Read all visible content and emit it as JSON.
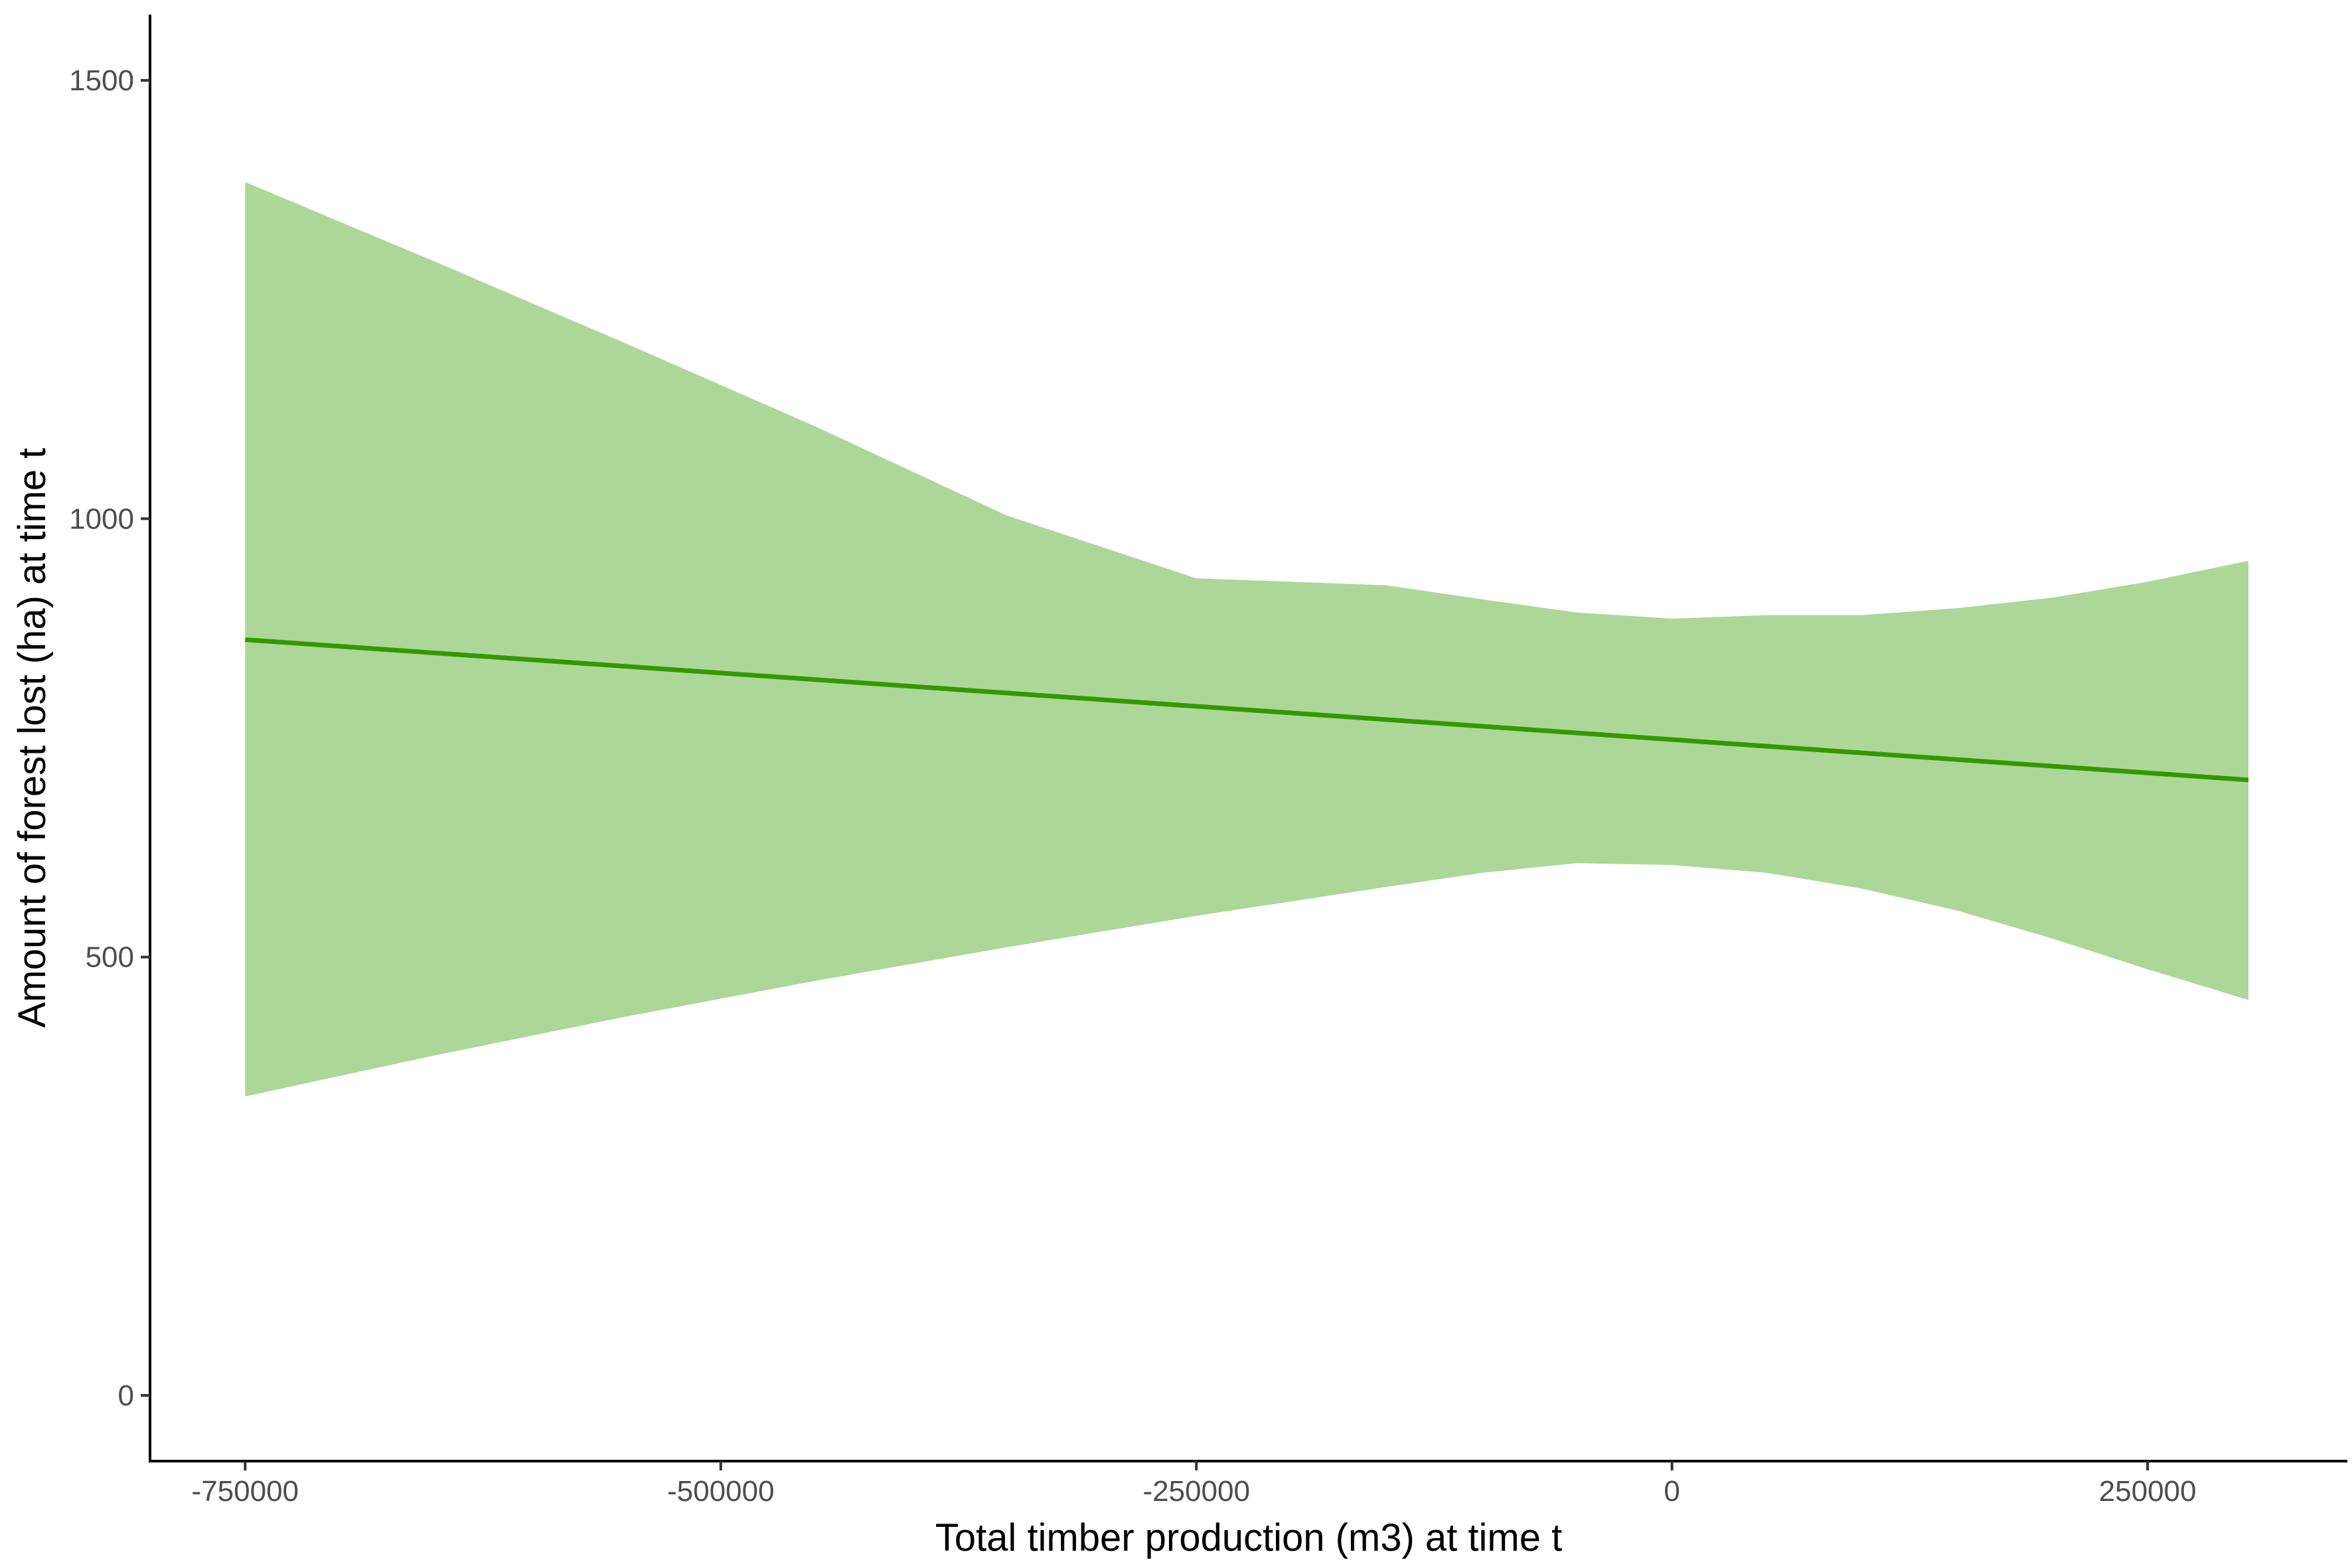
{
  "chart_data": {
    "type": "line",
    "title": "",
    "xlabel": "Total timber production (m3) at time t",
    "ylabel": "Amount of forest lost (ha) at time t",
    "xlim": [
      -800000,
      355000
    ],
    "ylim": [
      -75,
      1575
    ],
    "x_ticks": [
      -750000,
      -500000,
      -250000,
      0,
      250000
    ],
    "x_tick_labels": [
      "-750000",
      "-500000",
      "-250000",
      "0",
      "250000"
    ],
    "y_ticks": [
      0,
      500,
      1000,
      1500
    ],
    "y_tick_labels": [
      "0",
      "500",
      "1000",
      "1500"
    ],
    "grid": false,
    "legend": "none",
    "colors": {
      "line": "#339900",
      "band": "#acd799"
    },
    "series": [
      {
        "x": [
          -750000,
          303000
        ],
        "y": [
          862,
          702
        ]
      }
    ],
    "confidence_band": {
      "x": [
        -750000,
        -650000,
        -550000,
        -450000,
        -350000,
        -250000,
        -150000,
        -100000,
        -50000,
        0,
        50000,
        100000,
        150000,
        200000,
        250000,
        303000
      ],
      "lower": [
        341,
        388,
        432,
        473,
        511,
        547,
        580,
        596,
        607,
        605,
        596,
        578,
        553,
        521,
        486,
        451
      ],
      "upper": [
        1384,
        1293,
        1200,
        1105,
        1004,
        932,
        924,
        908,
        893,
        886,
        890,
        890,
        898,
        910,
        928,
        952
      ]
    }
  }
}
